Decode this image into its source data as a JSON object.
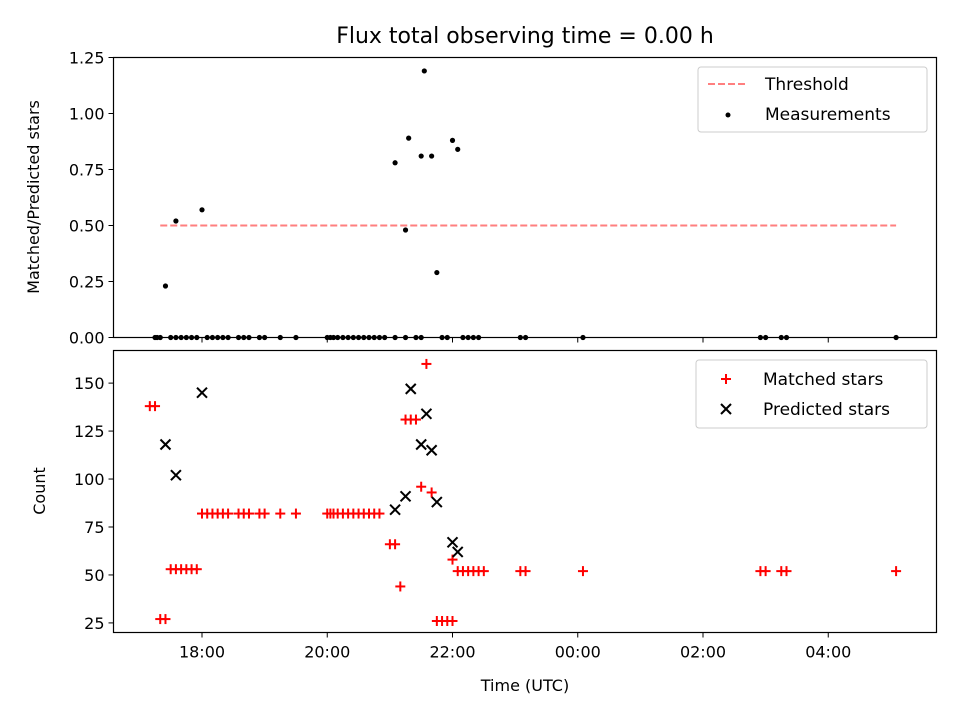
{
  "chart_data": [
    {
      "type": "scatter",
      "title": "Flux total observing time = 0.00 h",
      "ylabel": "Matched/Predicted stars",
      "xlabel": "",
      "ylim": [
        0,
        1.25
      ],
      "yticks": [
        "0.00",
        "0.25",
        "0.50",
        "0.75",
        "1.00",
        "1.25"
      ],
      "legend_position": "upper right",
      "threshold": {
        "name": "Threshold",
        "value": 0.5,
        "x_start": "17:20",
        "x_end": "05:05",
        "color": "#ff7f7f"
      },
      "series": [
        {
          "name": "Measurements",
          "color": "#000000",
          "marker": "dot",
          "points": [
            [
              "17:25",
              0.23
            ],
            [
              "17:35",
              0.52
            ],
            [
              "17:60",
              0.57
            ],
            [
              "21:05",
              0.78
            ],
            [
              "21:15",
              0.48
            ],
            [
              "21:18",
              0.89
            ],
            [
              "21:30",
              0.81
            ],
            [
              "21:33",
              1.19
            ],
            [
              "21:40",
              0.81
            ],
            [
              "21:45",
              0.29
            ],
            [
              "22:00",
              0.88
            ],
            [
              "22:05",
              0.84
            ],
            [
              "17:15",
              0
            ],
            [
              "17:17",
              0
            ],
            [
              "17:20",
              0
            ],
            [
              "17:30",
              0
            ],
            [
              "17:35",
              0
            ],
            [
              "17:40",
              0
            ],
            [
              "17:45",
              0
            ],
            [
              "17:50",
              0
            ],
            [
              "17:55",
              0
            ],
            [
              "18:05",
              0
            ],
            [
              "18:10",
              0
            ],
            [
              "18:15",
              0
            ],
            [
              "18:20",
              0
            ],
            [
              "18:25",
              0
            ],
            [
              "18:35",
              0
            ],
            [
              "18:40",
              0
            ],
            [
              "18:45",
              0
            ],
            [
              "18:55",
              0
            ],
            [
              "19:00",
              0
            ],
            [
              "19:15",
              0
            ],
            [
              "19:30",
              0
            ],
            [
              "20:00",
              0
            ],
            [
              "20:03",
              0
            ],
            [
              "20:06",
              0
            ],
            [
              "20:10",
              0
            ],
            [
              "20:15",
              0
            ],
            [
              "20:20",
              0
            ],
            [
              "20:25",
              0
            ],
            [
              "20:30",
              0
            ],
            [
              "20:35",
              0
            ],
            [
              "20:40",
              0
            ],
            [
              "20:45",
              0
            ],
            [
              "20:50",
              0
            ],
            [
              "20:55",
              0
            ],
            [
              "21:05",
              0
            ],
            [
              "21:15",
              0
            ],
            [
              "21:25",
              0
            ],
            [
              "21:30",
              0
            ],
            [
              "21:50",
              0
            ],
            [
              "21:55",
              0
            ],
            [
              "22:10",
              0
            ],
            [
              "22:15",
              0
            ],
            [
              "22:20",
              0
            ],
            [
              "22:25",
              0
            ],
            [
              "23:05",
              0
            ],
            [
              "23:10",
              0
            ],
            [
              "00:05",
              0
            ],
            [
              "02:55",
              0
            ],
            [
              "03:00",
              0
            ],
            [
              "03:15",
              0
            ],
            [
              "03:20",
              0
            ],
            [
              "05:05",
              0
            ]
          ]
        }
      ]
    },
    {
      "type": "scatter",
      "title": "",
      "ylabel": "Count",
      "xlabel": "Time (UTC)",
      "ylim": [
        20,
        167
      ],
      "yticks": [
        "25",
        "50",
        "75",
        "100",
        "125",
        "150"
      ],
      "xticks": [
        "18:00",
        "20:00",
        "22:00",
        "00:00",
        "02:00",
        "04:00"
      ],
      "legend_position": "upper right",
      "series": [
        {
          "name": "Matched stars",
          "color": "#ff0000",
          "marker": "plus",
          "points": [
            [
              "17:10",
              138
            ],
            [
              "17:15",
              138
            ],
            [
              "17:20",
              27
            ],
            [
              "17:25",
              27
            ],
            [
              "17:30",
              53
            ],
            [
              "17:35",
              53
            ],
            [
              "17:40",
              53
            ],
            [
              "17:45",
              53
            ],
            [
              "17:50",
              53
            ],
            [
              "17:55",
              53
            ],
            [
              "18:00",
              82
            ],
            [
              "18:05",
              82
            ],
            [
              "18:10",
              82
            ],
            [
              "18:15",
              82
            ],
            [
              "18:20",
              82
            ],
            [
              "18:25",
              82
            ],
            [
              "18:35",
              82
            ],
            [
              "18:40",
              82
            ],
            [
              "18:45",
              82
            ],
            [
              "18:55",
              82
            ],
            [
              "19:00",
              82
            ],
            [
              "19:15",
              82
            ],
            [
              "19:30",
              82
            ],
            [
              "20:00",
              82
            ],
            [
              "20:03",
              82
            ],
            [
              "20:06",
              82
            ],
            [
              "20:10",
              82
            ],
            [
              "20:15",
              82
            ],
            [
              "20:20",
              82
            ],
            [
              "20:25",
              82
            ],
            [
              "20:30",
              82
            ],
            [
              "20:35",
              82
            ],
            [
              "20:40",
              82
            ],
            [
              "20:45",
              82
            ],
            [
              "20:50",
              82
            ],
            [
              "21:00",
              66
            ],
            [
              "21:05",
              66
            ],
            [
              "21:10",
              44
            ],
            [
              "21:15",
              131
            ],
            [
              "21:20",
              131
            ],
            [
              "21:25",
              131
            ],
            [
              "21:30",
              96
            ],
            [
              "21:35",
              160
            ],
            [
              "21:40",
              93
            ],
            [
              "21:45",
              26
            ],
            [
              "21:50",
              26
            ],
            [
              "21:55",
              26
            ],
            [
              "22:00",
              26
            ],
            [
              "22:00",
              58
            ],
            [
              "22:05",
              52
            ],
            [
              "22:10",
              52
            ],
            [
              "22:15",
              52
            ],
            [
              "22:20",
              52
            ],
            [
              "22:25",
              52
            ],
            [
              "22:30",
              52
            ],
            [
              "23:05",
              52
            ],
            [
              "23:10",
              52
            ],
            [
              "00:05",
              52
            ],
            [
              "02:55",
              52
            ],
            [
              "03:00",
              52
            ],
            [
              "03:15",
              52
            ],
            [
              "03:20",
              52
            ],
            [
              "05:05",
              52
            ]
          ]
        },
        {
          "name": "Predicted stars",
          "color": "#000000",
          "marker": "x",
          "points": [
            [
              "17:25",
              118
            ],
            [
              "17:35",
              102
            ],
            [
              "18:00",
              145
            ],
            [
              "21:05",
              84
            ],
            [
              "21:15",
              91
            ],
            [
              "21:20",
              147
            ],
            [
              "21:30",
              118
            ],
            [
              "21:35",
              134
            ],
            [
              "21:40",
              115
            ],
            [
              "21:45",
              88
            ],
            [
              "22:00",
              67
            ],
            [
              "22:05",
              62
            ]
          ]
        }
      ]
    }
  ]
}
